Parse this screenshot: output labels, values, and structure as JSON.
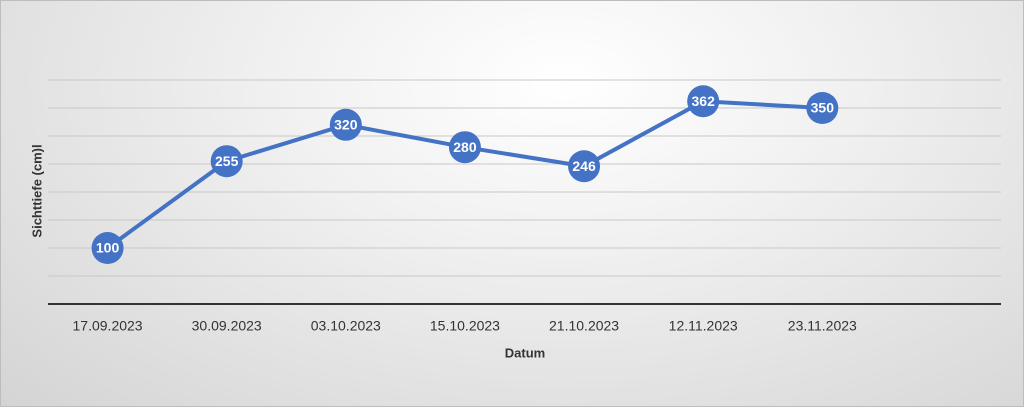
{
  "chart_data": {
    "type": "line",
    "y_label": "Sichttiefe (cm)l",
    "x_label": "Datum",
    "categories": [
      "17.09.2023",
      "30.09.2023",
      "03.10.2023",
      "15.10.2023",
      "21.10.2023",
      "12.11.2023",
      "23.11.2023",
      null
    ],
    "series": [
      {
        "color": "#4472c4",
        "values": [
          100,
          255,
          320,
          280,
          246,
          362,
          350,
          null
        ]
      }
    ],
    "ylim": [
      0,
      400
    ],
    "yticks": [
      0,
      50,
      100,
      150,
      200,
      250,
      300,
      350,
      400
    ],
    "grid": true,
    "show_ytick_labels": false,
    "data_labels": true
  }
}
